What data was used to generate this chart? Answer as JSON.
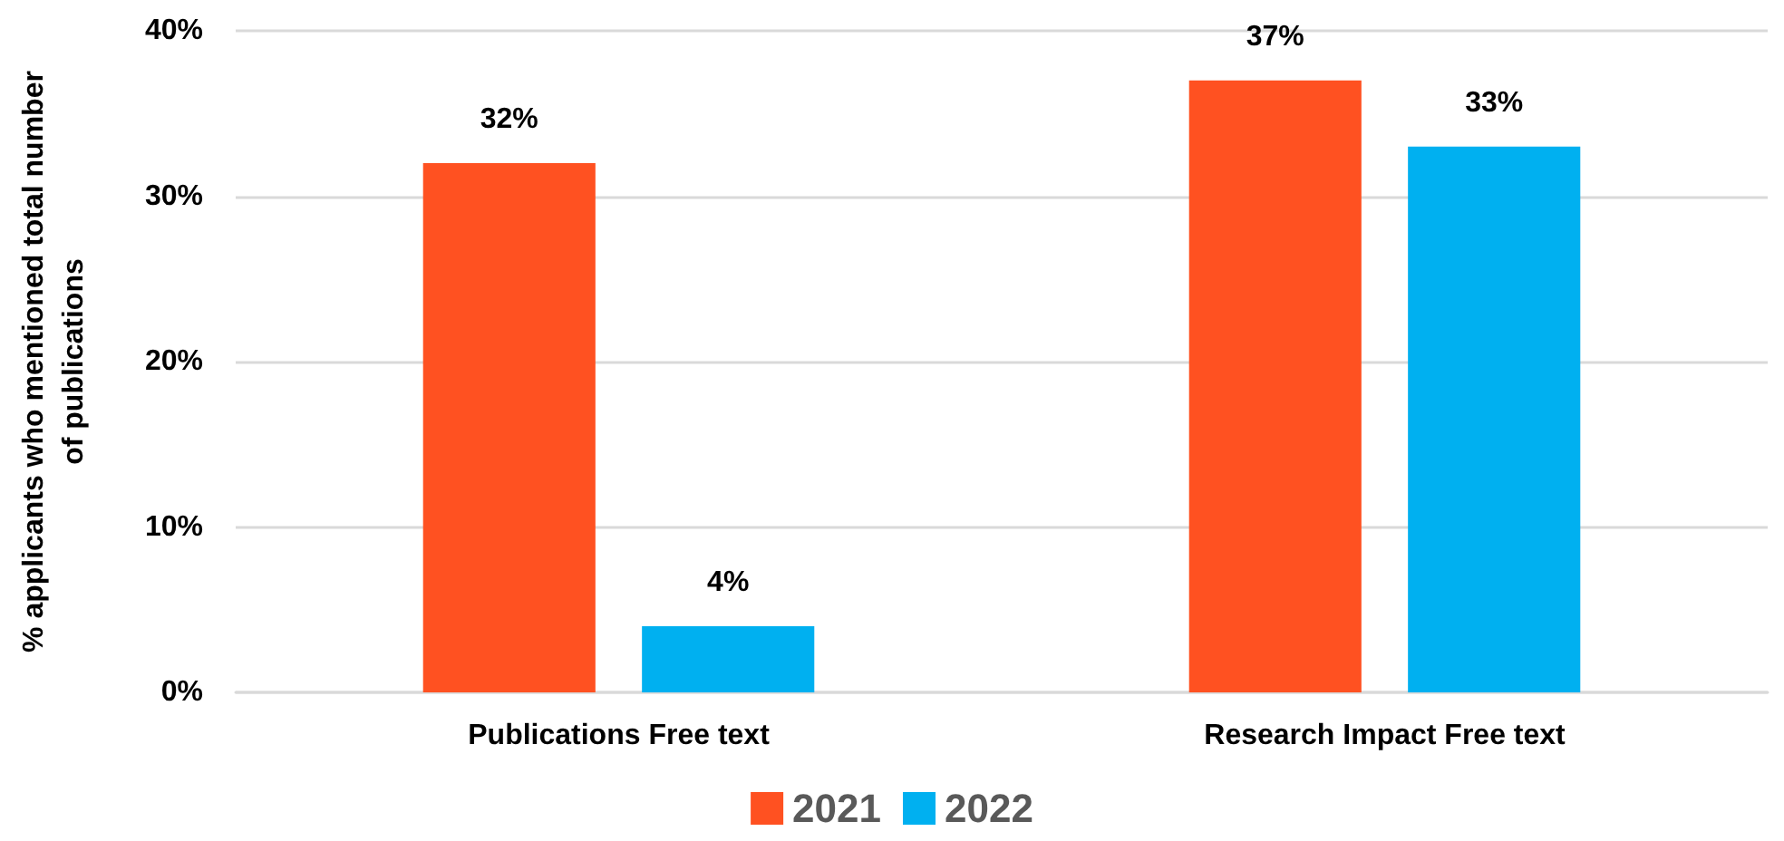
{
  "chart_data": {
    "type": "bar",
    "ylabel": "% applicants who mentioned total number of publications",
    "categories": [
      "Publications Free text",
      "Research Impact Free text"
    ],
    "series": [
      {
        "name": "2021",
        "color": "#ff5121",
        "values": [
          32,
          37
        ],
        "value_labels": [
          "32%",
          "37%"
        ]
      },
      {
        "name": "2022",
        "color": "#00b0f0",
        "values": [
          4,
          33
        ],
        "value_labels": [
          "4%",
          "33%"
        ]
      }
    ],
    "ylim": [
      0,
      40
    ],
    "yticks": [
      {
        "value": 0,
        "label": "0%"
      },
      {
        "value": 10,
        "label": "10%"
      },
      {
        "value": 20,
        "label": "20%"
      },
      {
        "value": 30,
        "label": "30%"
      },
      {
        "value": 40,
        "label": "40%"
      }
    ],
    "grid": "y",
    "legend": "bottom"
  }
}
